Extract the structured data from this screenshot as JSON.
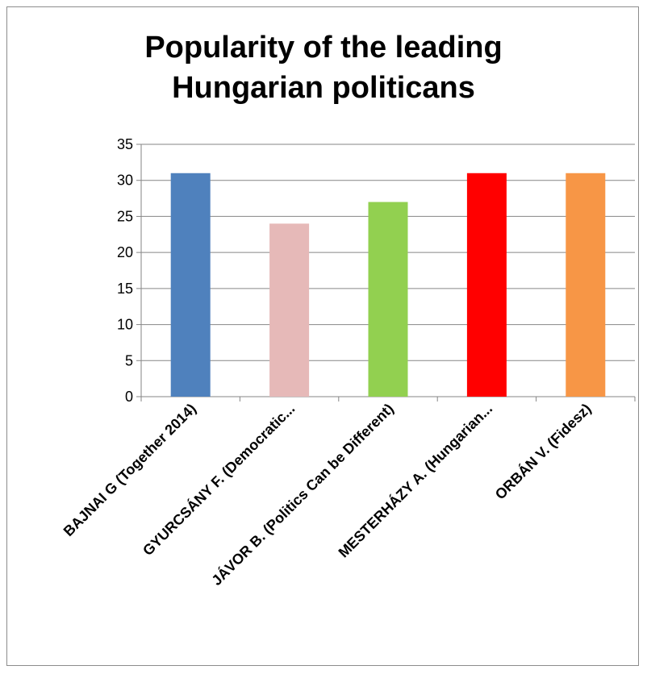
{
  "chart_data": {
    "type": "bar",
    "title_lines": [
      "Popularity of the leading",
      "Hungarian politicans"
    ],
    "categories": [
      "BAJNAI G (Together 2014)",
      "GYURCSÁNY F. (Democratic...",
      "JÁVOR B. (Politics Can be Different)",
      "MESTERHÁZY A. (Hungarian...",
      "ORBÁN V. (Fidesz)"
    ],
    "values": [
      31,
      24,
      27,
      31,
      31
    ],
    "colors": [
      "#4f81bd",
      "#e6b9b8",
      "#92d050",
      "#ff0000",
      "#f79646"
    ],
    "yticks": [
      "0",
      "5",
      "10",
      "15",
      "20",
      "25",
      "30",
      "35"
    ],
    "ylim": [
      0,
      35
    ],
    "xlabel": "",
    "ylabel": "",
    "grid": true,
    "legend": "none"
  }
}
